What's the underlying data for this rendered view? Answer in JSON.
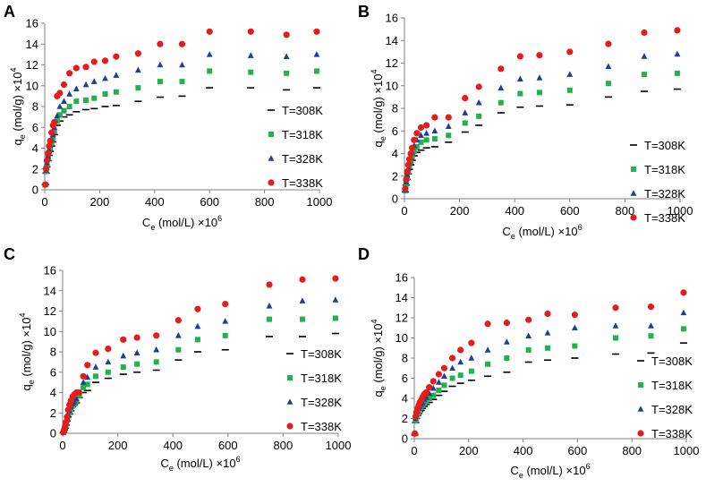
{
  "figure": {
    "legend_placement": "right"
  },
  "chart_data": [
    {
      "panel": "A",
      "type": "scatter",
      "xlabel": "C",
      "xlabel_sub": "e",
      "xlabel_tail": " (mol/L) ×10",
      "xlabel_sup": "6",
      "ylabel": "q",
      "ylabel_sub": "e",
      "ylabel_tail": " (mol/g) ×10",
      "ylabel_sup": "4",
      "xlim": [
        0,
        1000
      ],
      "ylim": [
        0,
        16
      ],
      "xticks": [
        0,
        200,
        400,
        600,
        800,
        1000
      ],
      "yticks": [
        0,
        2,
        4,
        6,
        8,
        10,
        12,
        14,
        16
      ],
      "series": [
        {
          "name": "T=308K",
          "marker": "dash",
          "color": "#000000",
          "x": [
            2,
            5,
            8,
            12,
            16,
            20,
            25,
            30,
            35,
            45,
            55,
            70,
            90,
            115,
            150,
            180,
            220,
            260,
            340,
            420,
            500,
            600,
            750,
            880,
            990
          ],
          "y": [
            0.5,
            1.6,
            2.2,
            2.8,
            3.3,
            3.7,
            4.2,
            4.6,
            5.3,
            6.2,
            6.6,
            7.0,
            7.2,
            7.5,
            7.7,
            7.8,
            8.0,
            8.1,
            8.5,
            8.9,
            9.0,
            9.8,
            9.8,
            9.6,
            9.8
          ]
        },
        {
          "name": "T=318K",
          "marker": "square",
          "color": "#22b14c",
          "x": [
            2,
            5,
            8,
            12,
            16,
            20,
            25,
            30,
            35,
            45,
            55,
            70,
            90,
            115,
            150,
            180,
            220,
            260,
            340,
            420,
            500,
            600,
            750,
            880,
            990
          ],
          "y": [
            0.5,
            1.8,
            2.4,
            3.0,
            3.6,
            4.0,
            4.5,
            4.9,
            5.6,
            6.6,
            7.2,
            7.6,
            8.0,
            8.5,
            8.6,
            8.8,
            9.2,
            9.4,
            9.8,
            10.4,
            10.4,
            11.4,
            11.3,
            11.2,
            11.4
          ]
        },
        {
          "name": "T=328K",
          "marker": "triangle",
          "color": "#1f3e9c",
          "x": [
            2,
            5,
            8,
            12,
            16,
            20,
            25,
            30,
            35,
            45,
            55,
            70,
            90,
            115,
            150,
            180,
            220,
            260,
            340,
            420,
            500,
            600,
            750,
            880,
            990
          ],
          "y": [
            0.5,
            1.9,
            2.6,
            3.2,
            3.8,
            4.3,
            4.8,
            5.3,
            6.0,
            7.1,
            8.0,
            8.5,
            9.2,
            9.7,
            10.1,
            10.4,
            10.7,
            11.0,
            11.5,
            12.0,
            12.0,
            13.0,
            12.9,
            12.8,
            13.0
          ]
        },
        {
          "name": "T=338K",
          "marker": "circle",
          "color": "#e51c1c",
          "x": [
            2,
            5,
            8,
            12,
            16,
            20,
            25,
            30,
            35,
            45,
            55,
            70,
            90,
            115,
            150,
            180,
            220,
            260,
            340,
            420,
            500,
            600,
            750,
            880,
            990
          ],
          "y": [
            0.5,
            2.0,
            2.8,
            3.5,
            4.2,
            4.7,
            5.5,
            6.2,
            6.5,
            9.0,
            9.3,
            10.1,
            11.2,
            11.7,
            11.8,
            12.3,
            12.4,
            12.8,
            13.1,
            14.0,
            14.0,
            15.2,
            15.2,
            14.9,
            15.2
          ]
        }
      ]
    },
    {
      "panel": "B",
      "type": "scatter",
      "xlabel": "C",
      "xlabel_sub": "e",
      "xlabel_tail": " (mol/L) ×10",
      "xlabel_sup": "6",
      "ylabel": "q",
      "ylabel_sub": "e",
      "ylabel_tail": " (mol/g) ×10",
      "ylabel_sup": "4",
      "xlim": [
        0,
        1000
      ],
      "ylim": [
        0,
        16
      ],
      "xticks": [
        0,
        200,
        400,
        600,
        800,
        1000
      ],
      "yticks": [
        0,
        2,
        4,
        6,
        8,
        10,
        12,
        14,
        16
      ],
      "series": [
        {
          "name": "T=308K",
          "marker": "dash",
          "color": "#000000",
          "x": [
            3,
            6,
            10,
            14,
            18,
            23,
            28,
            35,
            45,
            60,
            80,
            110,
            160,
            220,
            270,
            350,
            420,
            490,
            600,
            740,
            870,
            990
          ],
          "y": [
            0.6,
            1.2,
            1.7,
            2.2,
            2.6,
            3.0,
            3.4,
            3.8,
            4.1,
            4.3,
            4.5,
            4.6,
            5.0,
            5.9,
            6.5,
            7.6,
            8.1,
            8.2,
            8.3,
            9.0,
            9.5,
            9.7
          ]
        },
        {
          "name": "T=318K",
          "marker": "square",
          "color": "#22b14c",
          "x": [
            3,
            6,
            10,
            14,
            18,
            23,
            28,
            35,
            45,
            60,
            80,
            110,
            160,
            220,
            270,
            350,
            420,
            490,
            600,
            740,
            870,
            990
          ],
          "y": [
            0.7,
            1.3,
            1.9,
            2.4,
            2.9,
            3.3,
            3.7,
            4.2,
            4.6,
            5.0,
            5.2,
            5.3,
            5.6,
            6.7,
            7.3,
            8.5,
            9.3,
            9.4,
            9.6,
            10.2,
            11.0,
            11.1
          ]
        },
        {
          "name": "T=328K",
          "marker": "triangle",
          "color": "#1f3e9c",
          "x": [
            3,
            6,
            10,
            14,
            18,
            23,
            28,
            35,
            45,
            60,
            80,
            110,
            160,
            220,
            270,
            350,
            420,
            490,
            600,
            740,
            870,
            990
          ],
          "y": [
            0.8,
            1.5,
            2.1,
            2.7,
            3.2,
            3.6,
            4.1,
            4.7,
            5.2,
            5.6,
            5.8,
            6.0,
            6.4,
            7.6,
            8.5,
            9.8,
            10.6,
            10.7,
            11.0,
            11.7,
            12.6,
            12.8
          ]
        },
        {
          "name": "T=338K",
          "marker": "circle",
          "color": "#e51c1c",
          "x": [
            3,
            6,
            10,
            14,
            18,
            23,
            28,
            35,
            45,
            60,
            80,
            110,
            160,
            220,
            270,
            350,
            420,
            490,
            600,
            740,
            870,
            990
          ],
          "y": [
            0.9,
            1.7,
            2.4,
            3.0,
            3.5,
            4.0,
            4.5,
            5.2,
            5.8,
            6.3,
            6.5,
            7.2,
            7.2,
            8.9,
            9.9,
            11.5,
            12.6,
            12.7,
            13.0,
            13.7,
            14.7,
            14.9
          ]
        }
      ]
    },
    {
      "panel": "C",
      "type": "scatter",
      "xlabel": "C",
      "xlabel_sub": "e",
      "xlabel_tail": " (mol/L) ×10",
      "xlabel_sup": "6",
      "ylabel": "q",
      "ylabel_sub": "e",
      "ylabel_tail": " (mol/g) ×10",
      "ylabel_sup": "4",
      "xlim": [
        0,
        1000
      ],
      "ylim": [
        0,
        16
      ],
      "xticks": [
        0,
        200,
        400,
        600,
        800,
        1000
      ],
      "yticks": [
        0,
        2,
        4,
        6,
        8,
        10,
        12,
        14,
        16
      ],
      "series": [
        {
          "name": "T=308K",
          "marker": "dash",
          "color": "#000000",
          "x": [
            3,
            6,
            9,
            12,
            16,
            20,
            25,
            30,
            36,
            42,
            50,
            60,
            75,
            90,
            120,
            165,
            220,
            270,
            340,
            420,
            490,
            590,
            750,
            870,
            990
          ],
          "y": [
            0.1,
            0.3,
            0.5,
            0.8,
            1.2,
            1.6,
            1.9,
            2.2,
            2.6,
            2.8,
            3.0,
            3.5,
            4.0,
            4.2,
            5.0,
            5.4,
            5.8,
            6.0,
            6.2,
            7.2,
            8.0,
            8.2,
            9.5,
            9.5,
            9.8
          ]
        },
        {
          "name": "T=318K",
          "marker": "square",
          "color": "#22b14c",
          "x": [
            3,
            6,
            9,
            12,
            16,
            20,
            25,
            30,
            36,
            42,
            50,
            60,
            75,
            90,
            120,
            165,
            220,
            270,
            340,
            420,
            490,
            590,
            750,
            870,
            990
          ],
          "y": [
            0.1,
            0.3,
            0.6,
            0.9,
            1.3,
            1.7,
            2.0,
            2.4,
            2.7,
            2.9,
            3.1,
            3.7,
            4.5,
            4.8,
            5.6,
            6.0,
            6.5,
            6.8,
            7.0,
            8.2,
            9.2,
            9.6,
            11.2,
            11.2,
            11.3
          ]
        },
        {
          "name": "T=328K",
          "marker": "triangle",
          "color": "#1f3e9c",
          "x": [
            3,
            6,
            9,
            12,
            16,
            20,
            25,
            30,
            36,
            42,
            50,
            60,
            75,
            90,
            120,
            165,
            220,
            270,
            340,
            420,
            490,
            590,
            750,
            870,
            990
          ],
          "y": [
            0.1,
            0.4,
            0.6,
            1.0,
            1.4,
            1.8,
            2.2,
            2.6,
            2.9,
            3.1,
            3.4,
            4.0,
            5.0,
            5.5,
            6.5,
            7.0,
            7.6,
            7.9,
            8.2,
            9.6,
            10.5,
            11.0,
            12.5,
            13.0,
            13.1
          ]
        },
        {
          "name": "T=338K",
          "marker": "circle",
          "color": "#e51c1c",
          "x": [
            3,
            6,
            9,
            12,
            16,
            20,
            25,
            30,
            36,
            42,
            50,
            60,
            75,
            90,
            120,
            165,
            220,
            270,
            340,
            420,
            490,
            590,
            750,
            870,
            990
          ],
          "y": [
            0.1,
            0.4,
            0.7,
            1.1,
            1.6,
            2.3,
            2.8,
            3.2,
            3.6,
            3.8,
            4.0,
            4.0,
            5.6,
            6.7,
            7.9,
            8.3,
            9.2,
            9.4,
            9.6,
            11.1,
            12.2,
            12.7,
            14.6,
            15.1,
            15.2
          ]
        }
      ]
    },
    {
      "panel": "D",
      "type": "scatter",
      "xlabel": "C",
      "xlabel_sub": "e",
      "xlabel_tail": " (mol/L) ×10",
      "xlabel_sup": "6",
      "ylabel": "q",
      "ylabel_sub": "e",
      "ylabel_tail": " (mol/g) ×10",
      "ylabel_sup": "4",
      "xlim": [
        0,
        1000
      ],
      "ylim": [
        0,
        16
      ],
      "xticks": [
        0,
        200,
        400,
        600,
        800,
        1000
      ],
      "yticks": [
        0,
        2,
        4,
        6,
        8,
        10,
        12,
        14,
        16
      ],
      "series": [
        {
          "name": "T=308K",
          "marker": "dash",
          "color": "#000000",
          "x": [
            2,
            5,
            8,
            12,
            16,
            20,
            25,
            30,
            36,
            44,
            55,
            70,
            90,
            110,
            140,
            170,
            210,
            270,
            340,
            420,
            490,
            590,
            740,
            870,
            990
          ],
          "y": [
            0.4,
            1.6,
            2.0,
            2.3,
            2.5,
            2.7,
            2.8,
            3.0,
            3.2,
            3.4,
            3.6,
            3.9,
            4.3,
            4.7,
            5.2,
            5.5,
            5.8,
            6.2,
            6.6,
            7.6,
            7.8,
            8.0,
            8.4,
            8.5,
            9.5
          ]
        },
        {
          "name": "T=318K",
          "marker": "square",
          "color": "#22b14c",
          "x": [
            2,
            5,
            8,
            12,
            16,
            20,
            25,
            30,
            36,
            44,
            55,
            70,
            90,
            110,
            140,
            170,
            210,
            270,
            340,
            420,
            490,
            590,
            740,
            870,
            990
          ],
          "y": [
            0.5,
            1.8,
            2.2,
            2.5,
            2.7,
            2.9,
            3.1,
            3.3,
            3.5,
            3.7,
            4.0,
            4.3,
            4.8,
            5.3,
            6.0,
            6.3,
            6.7,
            7.4,
            8.0,
            8.8,
            9.0,
            9.2,
            10.0,
            10.2,
            10.9
          ]
        },
        {
          "name": "T=328K",
          "marker": "triangle",
          "color": "#1f3e9c",
          "x": [
            2,
            5,
            8,
            12,
            16,
            20,
            25,
            30,
            36,
            44,
            55,
            70,
            90,
            110,
            140,
            170,
            210,
            270,
            340,
            420,
            490,
            590,
            740,
            870,
            990
          ],
          "y": [
            0.5,
            2.0,
            2.4,
            2.7,
            3.0,
            3.2,
            3.4,
            3.6,
            3.9,
            4.1,
            4.5,
            5.0,
            5.6,
            6.2,
            7.0,
            7.6,
            8.0,
            8.8,
            9.6,
            10.2,
            10.5,
            11.0,
            11.2,
            11.2,
            12.5
          ]
        },
        {
          "name": "T=338K",
          "marker": "circle",
          "color": "#e51c1c",
          "x": [
            2,
            5,
            8,
            12,
            16,
            20,
            25,
            30,
            36,
            44,
            55,
            70,
            90,
            110,
            140,
            170,
            210,
            270,
            340,
            420,
            490,
            590,
            740,
            870,
            990
          ],
          "y": [
            0.5,
            2.2,
            2.6,
            3.0,
            3.3,
            3.6,
            3.8,
            4.1,
            4.4,
            4.6,
            5.1,
            5.7,
            6.4,
            7.0,
            8.0,
            8.8,
            9.5,
            11.4,
            11.5,
            11.8,
            12.4,
            12.3,
            13.0,
            13.1,
            14.5
          ]
        }
      ]
    }
  ]
}
